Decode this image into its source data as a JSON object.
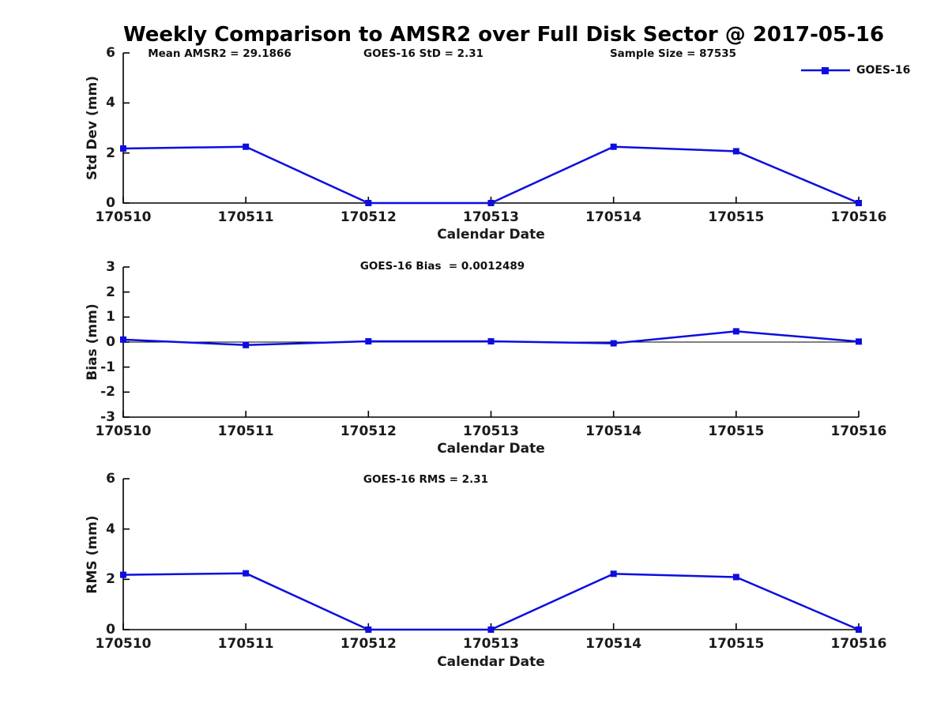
{
  "title": "Weekly Comparison to AMSR2 over Full Disk Sector @ 2017-05-16",
  "legend": {
    "label": "GOES-16",
    "position": "top-right-of-first-panel"
  },
  "colors": {
    "line": "#0d0de0",
    "axis": "#000000",
    "text": "#1a1a1a",
    "background": "#ffffff"
  },
  "chart_data": [
    {
      "type": "line",
      "panel": "std-dev",
      "annotations": [
        "Mean AMSR2 = 29.1866",
        "GOES-16 StD = 2.31",
        "Sample Size = 87535"
      ],
      "ylabel": "Std Dev (mm)",
      "xlabel": "Calendar Date",
      "categories": [
        "170510",
        "170511",
        "170512",
        "170513",
        "170514",
        "170515",
        "170516"
      ],
      "series": [
        {
          "name": "GOES-16",
          "values": [
            2.18,
            2.25,
            0.0,
            0.0,
            2.25,
            2.07,
            0.0
          ]
        }
      ],
      "ylim": [
        0,
        6
      ],
      "yticks": [
        0,
        2,
        4,
        6
      ],
      "grid": false,
      "zero_line": false
    },
    {
      "type": "line",
      "panel": "bias",
      "annotations": [
        "GOES-16 Bias  = 0.0012489"
      ],
      "ylabel": "Bias (mm)",
      "xlabel": "Calendar Date",
      "categories": [
        "170510",
        "170511",
        "170512",
        "170513",
        "170514",
        "170515",
        "170516"
      ],
      "series": [
        {
          "name": "GOES-16",
          "values": [
            0.1,
            -0.12,
            0.03,
            0.03,
            -0.05,
            0.43,
            0.02
          ]
        }
      ],
      "ylim": [
        -3,
        3
      ],
      "yticks": [
        3,
        2,
        1,
        0,
        -1,
        -2,
        -3
      ],
      "grid": false,
      "zero_line": true
    },
    {
      "type": "line",
      "panel": "rms",
      "annotations": [
        "GOES-16 RMS = 2.31"
      ],
      "ylabel": "RMS (mm)",
      "xlabel": "Calendar Date",
      "categories": [
        "170510",
        "170511",
        "170512",
        "170513",
        "170514",
        "170515",
        "170516"
      ],
      "series": [
        {
          "name": "GOES-16",
          "values": [
            2.18,
            2.24,
            0.0,
            0.0,
            2.22,
            2.09,
            0.0
          ]
        }
      ],
      "ylim": [
        0,
        6
      ],
      "yticks": [
        0,
        2,
        4,
        6
      ],
      "grid": false,
      "zero_line": false
    }
  ]
}
